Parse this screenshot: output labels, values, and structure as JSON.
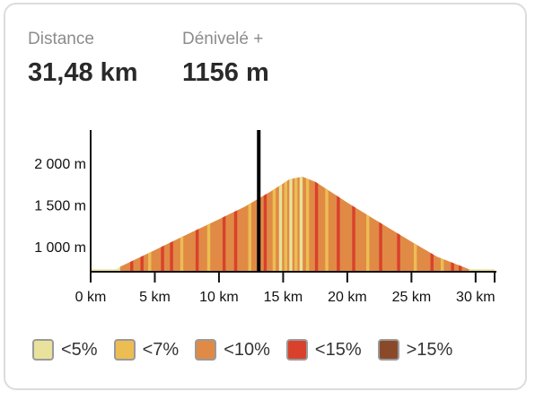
{
  "stats": {
    "distance": {
      "label": "Distance",
      "value": "31,48 km"
    },
    "elevation_gain": {
      "label": "Dénivelé +",
      "value": "1156 m"
    }
  },
  "legend": [
    {
      "label": "<5%",
      "color": "#e8e29c"
    },
    {
      "label": "<7%",
      "color": "#ecbd53"
    },
    {
      "label": "<10%",
      "color": "#e08a45"
    },
    {
      "label": "<15%",
      "color": "#d9412c"
    },
    {
      "label": ">15%",
      "color": "#8a4a2a"
    }
  ],
  "chart_data": {
    "type": "area",
    "xlabel": "",
    "ylabel": "",
    "x_unit": "km",
    "y_unit": "m",
    "xlim": [
      0,
      31.48
    ],
    "ylim": [
      700,
      2400
    ],
    "x_ticks": [
      0,
      5,
      10,
      15,
      20,
      25,
      30
    ],
    "x_tick_labels": [
      "0 km",
      "5 km",
      "10 km",
      "15 km",
      "20 km",
      "25 km",
      "30 km"
    ],
    "y_ticks": [
      1000,
      1500,
      2000
    ],
    "y_tick_labels": [
      "1 000 m",
      "1 500 m",
      "2 000 m"
    ],
    "profile": {
      "x": [
        0,
        2,
        2.3,
        5,
        7,
        10,
        12,
        14,
        15.5,
        16.5,
        17.5,
        20,
        22,
        25,
        27,
        29,
        29.5,
        31.48
      ],
      "y": [
        730,
        730,
        760,
        960,
        1110,
        1330,
        1480,
        1660,
        1810,
        1840,
        1780,
        1530,
        1340,
        1060,
        880,
        760,
        730,
        730
      ]
    },
    "grade_segments": [
      {
        "from": 0,
        "to": 2.3,
        "class": "<5%"
      },
      {
        "from": 2.3,
        "to": 29.5,
        "class": "<10%"
      },
      {
        "from": 29.5,
        "to": 31.48,
        "class": "<5%"
      }
    ],
    "grade_accents": [
      {
        "at": 3.2,
        "class": "<15%"
      },
      {
        "at": 4.0,
        "class": "<15%"
      },
      {
        "at": 4.6,
        "class": "<7%"
      },
      {
        "at": 5.6,
        "class": "<15%"
      },
      {
        "at": 6.3,
        "class": "<15%"
      },
      {
        "at": 7.1,
        "class": "<7%"
      },
      {
        "at": 8.3,
        "class": "<15%"
      },
      {
        "at": 9.2,
        "class": "<7%"
      },
      {
        "at": 10.4,
        "class": "<15%"
      },
      {
        "at": 11.3,
        "class": "<15%"
      },
      {
        "at": 12.4,
        "class": "<7%"
      },
      {
        "at": 13.6,
        "class": "<15%"
      },
      {
        "at": 14.3,
        "class": "<7%"
      },
      {
        "at": 14.8,
        "class": "<5%"
      },
      {
        "at": 15.2,
        "class": "<7%"
      },
      {
        "at": 15.6,
        "class": "<5%"
      },
      {
        "at": 16.0,
        "class": "<7%"
      },
      {
        "at": 16.4,
        "class": "<5%"
      },
      {
        "at": 16.9,
        "class": "<7%"
      },
      {
        "at": 17.6,
        "class": "<15%"
      },
      {
        "at": 18.4,
        "class": "<7%"
      },
      {
        "at": 19.3,
        "class": "<15%"
      },
      {
        "at": 20.5,
        "class": "<15%"
      },
      {
        "at": 21.6,
        "class": "<7%"
      },
      {
        "at": 22.6,
        "class": "<15%"
      },
      {
        "at": 24.0,
        "class": "<15%"
      },
      {
        "at": 25.3,
        "class": "<7%"
      },
      {
        "at": 26.6,
        "class": "<15%"
      },
      {
        "at": 27.4,
        "class": "<7%"
      },
      {
        "at": 28.2,
        "class": "<15%"
      },
      {
        "at": 28.8,
        "class": "<15%"
      }
    ],
    "cursor_km": 13.1
  }
}
